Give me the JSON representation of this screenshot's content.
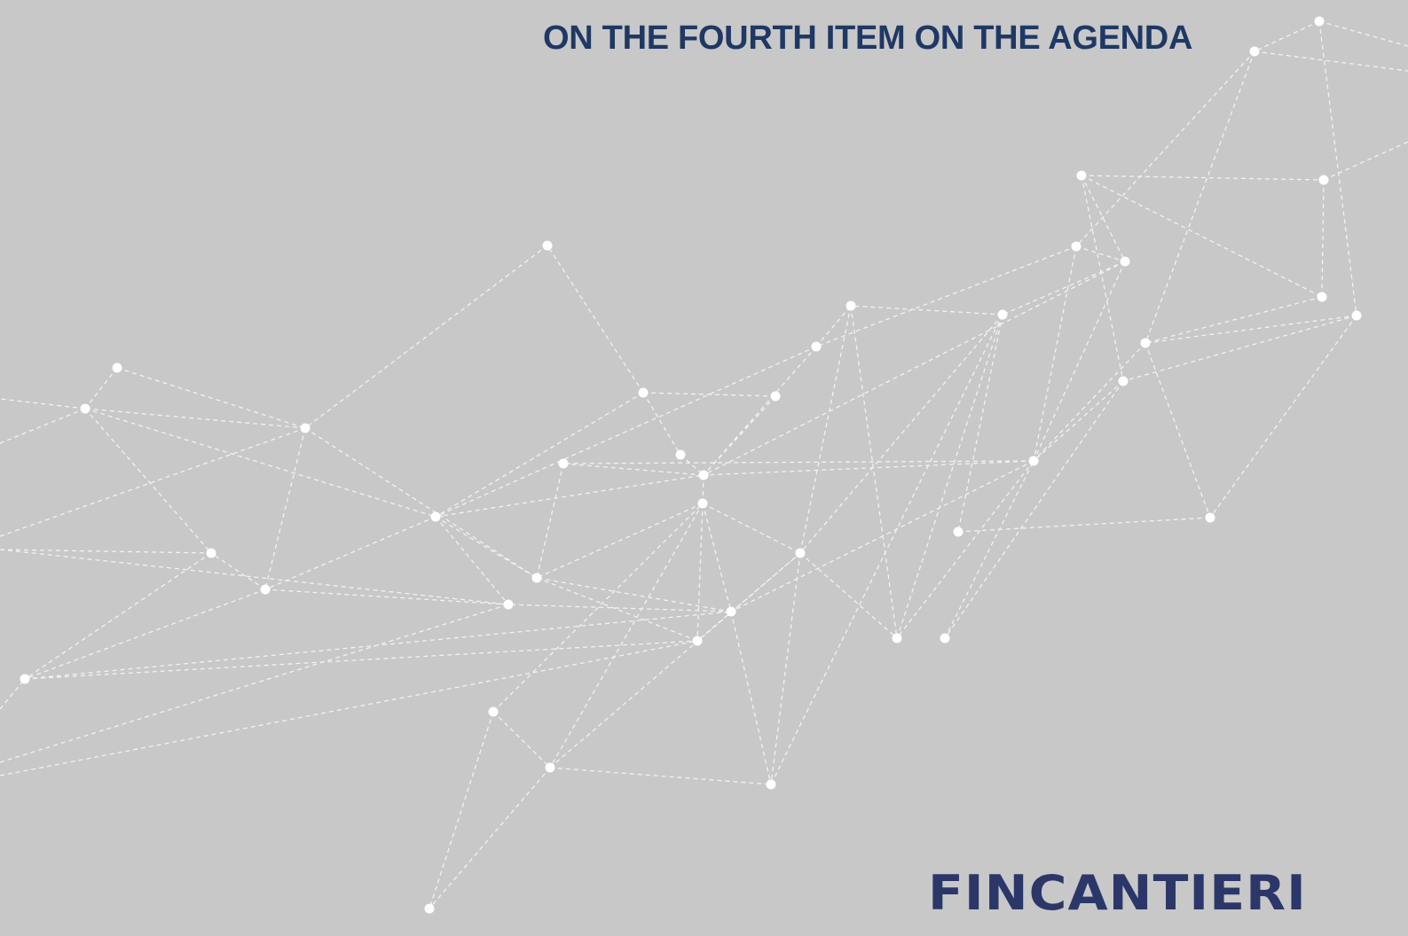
{
  "slide": {
    "title": "ON THE FOURTH ITEM ON THE AGENDA",
    "logo": "FINCANTIERI"
  }
}
